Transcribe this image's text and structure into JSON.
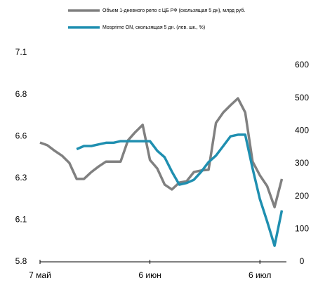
{
  "chart_data": {
    "type": "line",
    "categories": [
      "7 май",
      null,
      null,
      null,
      null,
      null,
      null,
      null,
      null,
      null,
      null,
      null,
      null,
      null,
      null,
      "6 июн",
      null,
      null,
      null,
      null,
      null,
      null,
      null,
      null,
      null,
      null,
      null,
      null,
      null,
      null,
      "6 июл",
      null,
      null,
      null
    ],
    "series": [
      {
        "name": "Объем 1-дневного репо с ЦБ РФ (скользящая 5 дн), млрд руб.",
        "color": "#808080",
        "axis": "y2",
        "values": [
          364,
          356,
          339,
          324,
          302,
          253,
          253,
          274,
          291,
          306,
          306,
          306,
          371,
          396,
          418,
          311,
          285,
          236,
          221,
          242,
          246,
          274,
          279,
          281,
          424,
          456,
          478,
          499,
          456,
          306,
          264,
          231,
          167,
          253
        ]
      },
      {
        "name": "Mosprime ON, скользящая 5 дн. (лев. шк., %)",
        "color": "#1f8fb0",
        "values": [
          null,
          null,
          null,
          null,
          null,
          6.5,
          6.52,
          6.52,
          6.53,
          6.54,
          6.54,
          6.55,
          6.55,
          6.55,
          6.55,
          6.55,
          6.49,
          6.45,
          6.36,
          6.28,
          6.29,
          6.31,
          6.36,
          6.42,
          6.46,
          6.52,
          6.58,
          6.59,
          6.59,
          6.38,
          6.19,
          6.05,
          5.9,
          6.12
        ]
      }
    ],
    "ylim": [
      5.8,
      7.1
    ],
    "yticks": [
      5.8,
      {
        "value": 6.06,
        "label": "6.1"
      },
      {
        "value": 6.32,
        "label": "6.3"
      },
      {
        "value": 6.58,
        "label": "6.6"
      },
      {
        "value": 6.84,
        "label": "6.8"
      },
      7.1
    ],
    "y2lim": [
      0,
      600
    ],
    "y2ticks": [
      0,
      100,
      200,
      300,
      400,
      500,
      600
    ],
    "grid": false
  }
}
